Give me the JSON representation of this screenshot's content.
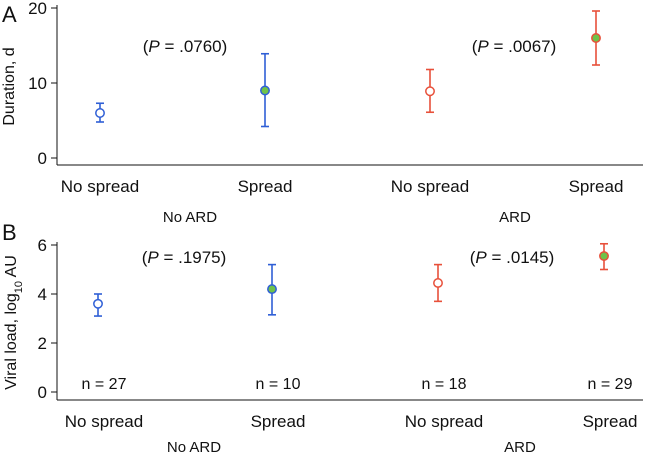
{
  "colors": {
    "no_ard": "#2f5fd6",
    "ard": "#e8503a",
    "spread_fill": "#6fc34a",
    "axis": "#111111"
  },
  "chart_data": [
    {
      "type": "scatter",
      "panel_label": "A",
      "ylabel": "Duration, d",
      "ylim": [
        0,
        20
      ],
      "yticks": [
        "0",
        "10",
        "20"
      ],
      "categories": [
        "No spread",
        "Spread",
        "No spread",
        "Spread"
      ],
      "groups": [
        {
          "label": "No ARD",
          "color_key": "no_ard",
          "categories": [
            0,
            1
          ],
          "pvalue": "(P = .0760)"
        },
        {
          "label": "ARD",
          "color_key": "ard",
          "categories": [
            2,
            3
          ],
          "pvalue": "(P = .0067)"
        }
      ],
      "series": [
        {
          "name": "No ARD / No spread",
          "group": 0,
          "cat": 0,
          "mean": 6.0,
          "low": 4.8,
          "high": 7.3,
          "filled": false
        },
        {
          "name": "No ARD / Spread",
          "group": 0,
          "cat": 1,
          "mean": 9.0,
          "low": 4.2,
          "high": 13.9,
          "filled": true
        },
        {
          "name": "ARD / No spread",
          "group": 1,
          "cat": 2,
          "mean": 8.9,
          "low": 6.1,
          "high": 11.8,
          "filled": false
        },
        {
          "name": "ARD / Spread",
          "group": 1,
          "cat": 3,
          "mean": 16.0,
          "low": 12.4,
          "high": 19.6,
          "filled": true
        }
      ]
    },
    {
      "type": "scatter",
      "panel_label": "B",
      "ylabel": "Viral load, log",
      "ylabel_sub": "10",
      "ylabel_tail": " AU",
      "ylim": [
        0,
        6
      ],
      "yticks": [
        "0",
        "2",
        "4",
        "6"
      ],
      "categories": [
        "No spread",
        "Spread",
        "No spread",
        "Spread"
      ],
      "groups": [
        {
          "label": "No ARD",
          "color_key": "no_ard",
          "categories": [
            0,
            1
          ],
          "pvalue": "(P = .1975)"
        },
        {
          "label": "ARD",
          "color_key": "ard",
          "categories": [
            2,
            3
          ],
          "pvalue": "(P = .0145)"
        }
      ],
      "counts": [
        "n = 27",
        "n = 10",
        "n = 18",
        "n = 29"
      ],
      "series": [
        {
          "name": "No ARD / No spread",
          "group": 0,
          "cat": 0,
          "mean": 3.6,
          "low": 3.1,
          "high": 4.0,
          "filled": false
        },
        {
          "name": "No ARD / Spread",
          "group": 0,
          "cat": 1,
          "mean": 4.2,
          "low": 3.15,
          "high": 5.2,
          "filled": true
        },
        {
          "name": "ARD / No spread",
          "group": 1,
          "cat": 2,
          "mean": 4.45,
          "low": 3.7,
          "high": 5.2,
          "filled": false
        },
        {
          "name": "ARD / Spread",
          "group": 1,
          "cat": 3,
          "mean": 5.55,
          "low": 5.0,
          "high": 6.05,
          "filled": true
        }
      ]
    }
  ]
}
